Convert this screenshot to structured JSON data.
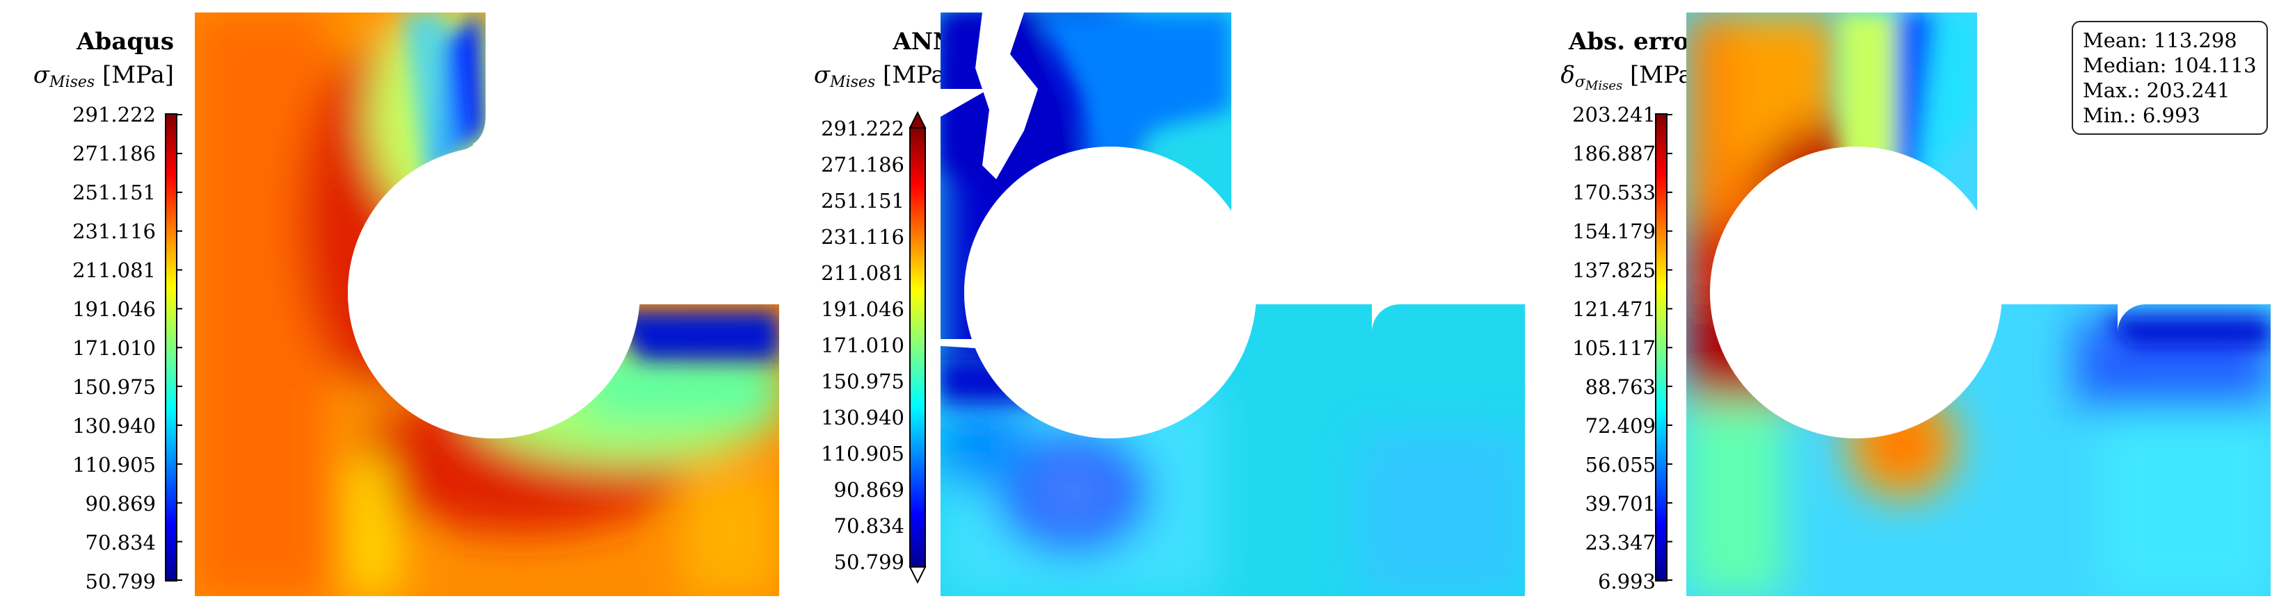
{
  "panels": [
    {
      "title": "Abaqus",
      "symbol": "σ",
      "subscript": "Mises",
      "unit": "[MPa]",
      "colorbar": {
        "ticks": [
          "291.222",
          "271.186",
          "251.151",
          "231.116",
          "211.081",
          "191.046",
          "171.010",
          "150.975",
          "130.940",
          "110.905",
          "90.869",
          "70.834",
          "50.799"
        ],
        "arrows": false
      }
    },
    {
      "title": "ANN",
      "symbol": "σ",
      "subscript": "Mises",
      "unit": "[MPa]",
      "colorbar": {
        "ticks": [
          "291.222",
          "271.186",
          "251.151",
          "231.116",
          "211.081",
          "191.046",
          "171.010",
          "150.975",
          "130.940",
          "110.905",
          "90.869",
          "70.834",
          "50.799"
        ],
        "arrows": true
      }
    },
    {
      "title": "Abs. error",
      "symbol": "δ",
      "symbol_sub": "σ",
      "subscript": "Mises",
      "unit": "[MPa]",
      "colorbar": {
        "ticks": [
          "203.241",
          "186.887",
          "170.533",
          "154.179",
          "137.825",
          "121.471",
          "105.117",
          "88.763",
          "72.409",
          "56.055",
          "39.701",
          "23.347",
          "6.993"
        ],
        "arrows": false
      },
      "stats": {
        "mean": "Mean: 113.298",
        "median": "Median: 104.113",
        "max": "Max.: 203.241",
        "min": "Min.: 6.993"
      }
    }
  ]
}
